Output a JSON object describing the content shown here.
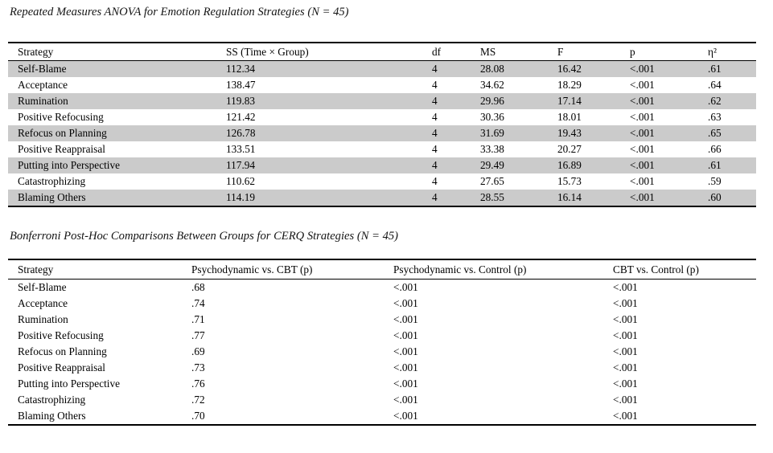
{
  "anova": {
    "title": "Repeated Measures ANOVA for Emotion Regulation Strategies (N = 45)",
    "columns": [
      "Strategy",
      "SS (Time × Group)",
      "df",
      "MS",
      "F",
      "p",
      "η²"
    ],
    "rows": [
      [
        "Self-Blame",
        "112.34",
        "4",
        "28.08",
        "16.42",
        "<.001",
        ".61"
      ],
      [
        "Acceptance",
        "138.47",
        "4",
        "34.62",
        "18.29",
        "<.001",
        ".64"
      ],
      [
        "Rumination",
        "119.83",
        "4",
        "29.96",
        "17.14",
        "<.001",
        ".62"
      ],
      [
        "Positive Refocusing",
        "121.42",
        "4",
        "30.36",
        "18.01",
        "<.001",
        ".63"
      ],
      [
        "Refocus on Planning",
        "126.78",
        "4",
        "31.69",
        "19.43",
        "<.001",
        ".65"
      ],
      [
        "Positive Reappraisal",
        "133.51",
        "4",
        "33.38",
        "20.27",
        "<.001",
        ".66"
      ],
      [
        "Putting into Perspective",
        "117.94",
        "4",
        "29.49",
        "16.89",
        "<.001",
        ".61"
      ],
      [
        "Catastrophizing",
        "110.62",
        "4",
        "27.65",
        "15.73",
        "<.001",
        ".59"
      ],
      [
        "Blaming Others",
        "114.19",
        "4",
        "28.55",
        "16.14",
        "<.001",
        ".60"
      ]
    ],
    "shaded_row_color": "#cbcbcb"
  },
  "posthoc": {
    "title": "Bonferroni Post-Hoc Comparisons Between Groups for CERQ Strategies (N = 45)",
    "columns": [
      "Strategy",
      "Psychodynamic vs. CBT (p)",
      "Psychodynamic vs. Control (p)",
      "CBT vs. Control (p)"
    ],
    "rows": [
      [
        "Self-Blame",
        ".68",
        "<.001",
        "<.001"
      ],
      [
        "Acceptance",
        ".74",
        "<.001",
        "<.001"
      ],
      [
        "Rumination",
        ".71",
        "<.001",
        "<.001"
      ],
      [
        "Positive Refocusing",
        ".77",
        "<.001",
        "<.001"
      ],
      [
        "Refocus on Planning",
        ".69",
        "<.001",
        "<.001"
      ],
      [
        "Positive Reappraisal",
        ".73",
        "<.001",
        "<.001"
      ],
      [
        "Putting into Perspective",
        ".76",
        "<.001",
        "<.001"
      ],
      [
        "Catastrophizing",
        ".72",
        "<.001",
        "<.001"
      ],
      [
        "Blaming Others",
        ".70",
        "<.001",
        "<.001"
      ]
    ]
  }
}
